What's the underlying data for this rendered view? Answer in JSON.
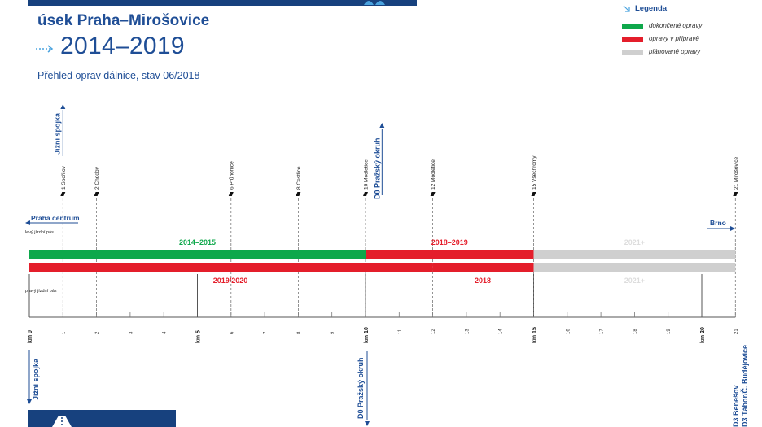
{
  "header": {
    "section_title": "úsek Praha–Mirošovice",
    "years": "2014–2019",
    "subtitle": "Přehled oprav dálnice, stav 06/2018"
  },
  "legend": {
    "title": "Legenda",
    "items": [
      {
        "label": "dokončené opravy",
        "color": "#0ea84b"
      },
      {
        "label": "opravy v přípravě",
        "color": "#e41e2b"
      },
      {
        "label": "plánované opravy",
        "color": "#cfcfcf"
      }
    ]
  },
  "colors": {
    "navy": "#1f4e96",
    "green": "#0ea84b",
    "red": "#e41e2b",
    "gray": "#cfcfcf",
    "dark": "#17417e"
  },
  "km_range": [
    0,
    21
  ],
  "directions": {
    "left": "Praha centrum",
    "right": "Brno"
  },
  "lanes": {
    "left": "levý jízdní pás",
    "right": "pravý jízdní pás"
  },
  "left_lane_segments": [
    {
      "from": 0,
      "to": 10,
      "status": "done",
      "label": "2014–2015"
    },
    {
      "from": 10,
      "to": 15,
      "status": "prep",
      "label": "2018–2019"
    },
    {
      "from": 15,
      "to": 21,
      "status": "planned",
      "label": "2021+"
    }
  ],
  "right_lane_segments": [
    {
      "from": 0,
      "to": 12,
      "status": "prep",
      "label": "2019/2020"
    },
    {
      "from": 12,
      "to": 15,
      "status": "prep",
      "label": "2018"
    },
    {
      "from": 15,
      "to": 21,
      "status": "planned",
      "label": "2021+"
    }
  ],
  "exits": [
    {
      "km": 1,
      "label": "1 Spořilov"
    },
    {
      "km": 2,
      "label": "2 Chodov"
    },
    {
      "km": 6,
      "label": "6 Průhonice"
    },
    {
      "km": 8,
      "label": "8 Čestlice"
    },
    {
      "km": 10,
      "label": "10 Modletice"
    },
    {
      "km": 12,
      "label": "12 Modletice"
    },
    {
      "km": 15,
      "label": "15 Všechromy"
    },
    {
      "km": 21,
      "label": "21 Mirošovice"
    }
  ],
  "top_connections": [
    {
      "km": 1,
      "label": "Jižní spojka"
    },
    {
      "km": 10.25,
      "label": "D0 Pražský okruh"
    }
  ],
  "bottom_connections": [
    {
      "km": 0,
      "label": "Jižní spojka"
    },
    {
      "km": 10,
      "label": "D0 Pražský okruh"
    },
    {
      "km": 21,
      "label": "D3 Tábor/Č. Budějovice"
    },
    {
      "km": 21,
      "label": "D3 Benešov"
    }
  ],
  "km_major_labels": [
    "km 0",
    "km 5",
    "km 10",
    "km 15",
    "km 20"
  ],
  "km_major_values": [
    0,
    5,
    10,
    15,
    20
  ],
  "km_minor_values": [
    1,
    2,
    3,
    4,
    6,
    7,
    8,
    9,
    11,
    12,
    13,
    14,
    16,
    17,
    18,
    19,
    21
  ]
}
